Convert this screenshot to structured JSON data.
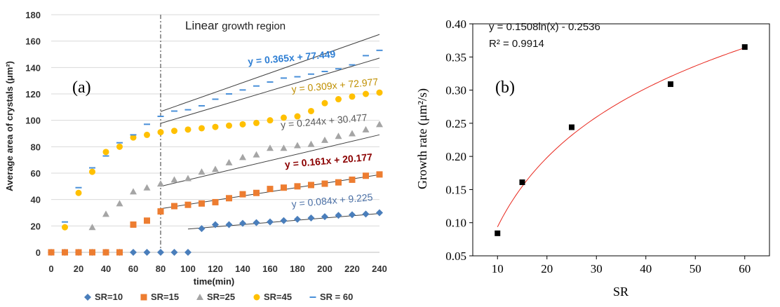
{
  "chart_data": [
    {
      "type": "scatter",
      "panel_label": "(a)",
      "xlabel": "time(min)",
      "ylabel": "Average area of crystals (μm²)",
      "xlim": [
        0,
        240
      ],
      "ylim": [
        0,
        180
      ],
      "xticks": [
        0,
        20,
        40,
        60,
        80,
        100,
        120,
        140,
        160,
        180,
        200,
        220,
        240
      ],
      "yticks": [
        0,
        20,
        40,
        60,
        80,
        100,
        120,
        140,
        160,
        180
      ],
      "grid": "horizontal",
      "legend_position": "bottom",
      "annotation": {
        "text_main": "Linear",
        "text_small": "growth region",
        "x": 80
      },
      "series": [
        {
          "name": "SR=10",
          "color": "#4a7ebb",
          "marker": "diamond",
          "x": [
            0,
            10,
            20,
            30,
            40,
            50,
            60,
            70,
            80,
            90,
            100,
            110,
            120,
            130,
            140,
            150,
            160,
            170,
            180,
            190,
            200,
            210,
            220,
            230,
            240
          ],
          "y": [
            0,
            0,
            0,
            0,
            0,
            0,
            0,
            0,
            0,
            0,
            0,
            18,
            21,
            21,
            22,
            22.5,
            23,
            24,
            25,
            26,
            27,
            28,
            28.5,
            29,
            30
          ],
          "fit": {
            "equation": "y = 0.084x + 9.225",
            "slope": 0.084,
            "intercept": 9.225,
            "x_range": [
              100,
              240
            ],
            "label_x": 176,
            "label_y": 34,
            "label_color": "#4a6fa5",
            "bold": false
          }
        },
        {
          "name": "SR=15",
          "color": "#ed7d31",
          "marker": "square",
          "x": [
            0,
            10,
            20,
            30,
            40,
            50,
            60,
            70,
            80,
            90,
            100,
            110,
            120,
            130,
            140,
            150,
            160,
            170,
            180,
            190,
            200,
            210,
            220,
            230,
            240
          ],
          "y": [
            0,
            0,
            0,
            0,
            0,
            0,
            21,
            24,
            31,
            35,
            36,
            37,
            38,
            41,
            44,
            45,
            48,
            49,
            50,
            51,
            52,
            53,
            55,
            58,
            59
          ],
          "fit": {
            "equation": "y =  0.161x + 20.177",
            "slope": 0.161,
            "intercept": 20.177,
            "x_range": [
              80,
              240
            ],
            "label_x": 171,
            "label_y": 64,
            "label_color": "#8b0000",
            "bold": true
          }
        },
        {
          "name": "SR=25",
          "color": "#a5a5a5",
          "marker": "triangle",
          "x": [
            30,
            40,
            50,
            60,
            70,
            80,
            90,
            100,
            110,
            120,
            130,
            140,
            150,
            160,
            170,
            180,
            190,
            200,
            210,
            220,
            230,
            240
          ],
          "y": [
            19,
            29,
            37,
            46,
            49,
            52,
            55,
            56,
            61,
            63,
            68,
            72,
            74,
            79,
            79,
            81,
            82,
            85,
            88,
            90,
            93,
            97
          ],
          "fit": {
            "equation": "y = 0.244x + 30.477",
            "slope": 0.244,
            "intercept": 30.477,
            "x_range": [
              80,
              240
            ],
            "label_x": 168,
            "label_y": 94,
            "label_color": "#595959",
            "bold": false
          }
        },
        {
          "name": "SR=45",
          "color": "#ffc000",
          "marker": "circle",
          "x": [
            10,
            20,
            30,
            40,
            50,
            60,
            70,
            80,
            90,
            100,
            110,
            120,
            130,
            140,
            150,
            160,
            170,
            180,
            190,
            200,
            210,
            220,
            230,
            240
          ],
          "y": [
            19,
            45,
            61,
            76,
            80,
            87,
            89,
            91,
            92,
            93,
            94,
            95,
            96,
            97,
            98,
            100,
            102,
            103,
            107,
            113,
            116,
            118,
            120,
            121
          ],
          "fit": {
            "equation": "y = 0.309x + 72.977",
            "slope": 0.309,
            "intercept": 72.977,
            "x_range": [
              80,
              240
            ],
            "label_x": 176,
            "label_y": 121,
            "label_color": "#bf8f00",
            "bold": false
          }
        },
        {
          "name": "SR = 60",
          "color": "#4a90d9",
          "marker": "dash",
          "x": [
            10,
            20,
            30,
            40,
            50,
            60,
            70,
            80,
            90,
            100,
            110,
            120,
            130,
            140,
            150,
            160,
            170,
            180,
            190,
            200,
            210,
            220,
            230,
            240
          ],
          "y": [
            23,
            49,
            64,
            73,
            83,
            89,
            97,
            103,
            107,
            108,
            111,
            116,
            120,
            123,
            126,
            129,
            132,
            133,
            135,
            137,
            139,
            142,
            149,
            153
          ],
          "fit": {
            "equation": "y = 0.365x + 77.449",
            "slope": 0.365,
            "intercept": 77.449,
            "x_range": [
              80,
              240
            ],
            "label_x": 144,
            "label_y": 142,
            "label_color": "#2f7fd4",
            "bold": true
          }
        }
      ]
    },
    {
      "type": "scatter",
      "panel_label": "(b)",
      "xlabel": "SR",
      "ylabel": "Growth rate (μm²/s)",
      "xlim": [
        5,
        65
      ],
      "ylim": [
        0.05,
        0.4
      ],
      "xticks": [
        10,
        20,
        30,
        40,
        50,
        60
      ],
      "yticks": [
        "0.05",
        "0.10",
        "0.15",
        "0.20",
        "0.25",
        "0.30",
        "0.35",
        "0.40"
      ],
      "grid": "off",
      "equation_line1": "y = 0.1508ln(x) - 0.2536",
      "equation_line2": "R² = 0.9914",
      "points": {
        "x": [
          10,
          15,
          25,
          45,
          60
        ],
        "y": [
          0.084,
          0.161,
          0.244,
          0.309,
          0.365
        ]
      },
      "marker_color": "#000000",
      "fit": {
        "a": 0.1508,
        "b": -0.2536,
        "x_range": [
          10,
          60
        ],
        "color": "#e8261c"
      }
    }
  ]
}
